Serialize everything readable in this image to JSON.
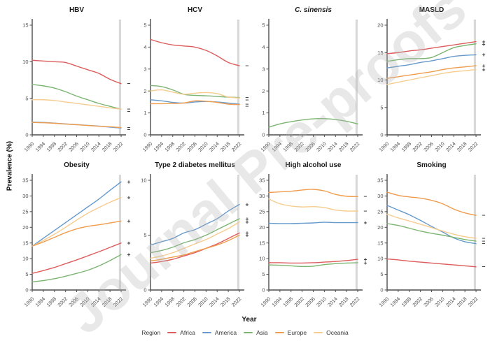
{
  "watermark": "Journal Pre-proofs",
  "ylabel": "Prevalence (%)",
  "xlabel": "Year",
  "legend": {
    "title": "Region",
    "items": [
      {
        "label": "Africa",
        "color": "#DD5C5C"
      },
      {
        "label": "America",
        "color": "#6699CC"
      },
      {
        "label": "Asia",
        "color": "#7CB572"
      },
      {
        "label": "Europe",
        "color": "#F09C4D"
      },
      {
        "label": "Oceania",
        "color": "#F6CC8F"
      }
    ]
  },
  "styles": {
    "axis": "#4d4d4d",
    "tick_text": "#4d4d4d",
    "band": "#d9d9d9",
    "marker": "#333333"
  },
  "highlight_band_year": 2021.6,
  "years": [
    1990,
    1994,
    1998,
    2002,
    2006,
    2010,
    2014,
    2018,
    2022
  ],
  "chart_data": [
    {
      "type": "line",
      "title": "HBV",
      "title_italic": false,
      "ylim": [
        0,
        15
      ],
      "yticks": [
        0,
        5,
        10,
        15
      ],
      "x": [
        1990,
        1994,
        1998,
        2002,
        2006,
        2010,
        2014,
        2018,
        2022
      ],
      "series": [
        {
          "name": "Africa",
          "values": [
            10.2,
            10.1,
            10.0,
            9.9,
            9.4,
            8.9,
            8.4,
            7.6,
            7.0
          ],
          "end_marker": "−"
        },
        {
          "name": "Asia",
          "values": [
            6.9,
            6.7,
            6.4,
            5.9,
            5.3,
            4.8,
            4.3,
            3.9,
            3.5
          ],
          "end_marker": "−"
        },
        {
          "name": "Oceania",
          "values": [
            4.8,
            4.8,
            4.7,
            4.5,
            4.3,
            4.1,
            3.9,
            3.7,
            3.5
          ],
          "end_marker": "−"
        },
        {
          "name": "America",
          "values": [
            1.75,
            1.7,
            1.6,
            1.5,
            1.4,
            1.3,
            1.2,
            1.05,
            0.95
          ],
          "end_marker": "−"
        },
        {
          "name": "Europe",
          "values": [
            1.7,
            1.65,
            1.58,
            1.48,
            1.38,
            1.28,
            1.18,
            1.1,
            1.0
          ],
          "end_marker": "−"
        }
      ]
    },
    {
      "type": "line",
      "title": "HCV",
      "title_italic": false,
      "ylim": [
        0,
        5
      ],
      "yticks": [
        0,
        1,
        2,
        3,
        4,
        5
      ],
      "x": [
        1990,
        1994,
        1998,
        2002,
        2006,
        2010,
        2014,
        2018,
        2022
      ],
      "series": [
        {
          "name": "Africa",
          "values": [
            4.35,
            4.2,
            4.1,
            4.05,
            4.0,
            3.85,
            3.6,
            3.3,
            3.15
          ],
          "end_marker": "−"
        },
        {
          "name": "Asia",
          "values": [
            2.25,
            2.2,
            2.05,
            1.85,
            1.8,
            1.78,
            1.75,
            1.72,
            1.7
          ],
          "end_marker": "−"
        },
        {
          "name": "Oceania",
          "values": [
            2.0,
            2.05,
            1.95,
            1.85,
            1.9,
            1.93,
            1.88,
            1.72,
            1.68
          ],
          "end_marker": "−"
        },
        {
          "name": "America",
          "values": [
            1.6,
            1.55,
            1.48,
            1.45,
            1.5,
            1.52,
            1.5,
            1.45,
            1.4
          ],
          "end_marker": "−"
        },
        {
          "name": "Europe",
          "values": [
            1.42,
            1.42,
            1.43,
            1.45,
            1.55,
            1.53,
            1.48,
            1.4,
            1.38
          ],
          "end_marker": "−"
        }
      ]
    },
    {
      "type": "line",
      "title": "C. sinensis",
      "title_italic": true,
      "ylim": [
        0,
        5
      ],
      "yticks": [
        0,
        1,
        2,
        3,
        4,
        5
      ],
      "x": [
        1990,
        1994,
        1998,
        2002,
        2006,
        2010,
        2014,
        2018,
        2022
      ],
      "series": [
        {
          "name": "Asia",
          "values": [
            0.35,
            0.5,
            0.6,
            0.68,
            0.73,
            0.74,
            0.7,
            0.62,
            0.5
          ],
          "end_marker": ""
        }
      ]
    },
    {
      "type": "line",
      "title": "MASLD",
      "title_italic": false,
      "ylim": [
        0,
        20
      ],
      "yticks": [
        0,
        5,
        10,
        15,
        20
      ],
      "x": [
        1990,
        1994,
        1998,
        2002,
        2006,
        2010,
        2014,
        2018,
        2022
      ],
      "series": [
        {
          "name": "Africa",
          "values": [
            14.8,
            15.0,
            15.3,
            15.5,
            15.8,
            16.1,
            16.4,
            16.7,
            17.0
          ],
          "end_marker": "+"
        },
        {
          "name": "Asia",
          "values": [
            13.4,
            13.7,
            13.9,
            13.9,
            14.1,
            15.0,
            15.9,
            16.3,
            16.6
          ],
          "end_marker": "+"
        },
        {
          "name": "America",
          "values": [
            12.2,
            12.5,
            12.8,
            13.2,
            13.5,
            13.9,
            14.3,
            14.5,
            14.6
          ],
          "end_marker": "+"
        },
        {
          "name": "Europe",
          "values": [
            10.3,
            10.6,
            10.9,
            11.2,
            11.5,
            11.9,
            12.2,
            12.4,
            12.6
          ],
          "end_marker": "+"
        },
        {
          "name": "Oceania",
          "values": [
            9.2,
            9.6,
            10.0,
            10.4,
            10.8,
            11.2,
            11.5,
            11.7,
            11.9
          ],
          "end_marker": "+"
        }
      ]
    },
    {
      "type": "line",
      "title": "Obesity",
      "title_italic": false,
      "ylim": [
        0,
        35
      ],
      "yticks": [
        0,
        5,
        10,
        15,
        20,
        25,
        30,
        35
      ],
      "x": [
        1990,
        1994,
        1998,
        2002,
        2006,
        2010,
        2014,
        2018,
        2022
      ],
      "series": [
        {
          "name": "America",
          "values": [
            14.0,
            16.5,
            19.0,
            21.5,
            24.0,
            26.5,
            29.0,
            31.8,
            34.5
          ],
          "end_marker": "+"
        },
        {
          "name": "Oceania",
          "values": [
            14.0,
            15.8,
            17.8,
            20.0,
            22.3,
            24.5,
            26.3,
            28.0,
            29.5
          ],
          "end_marker": "+"
        },
        {
          "name": "Europe",
          "values": [
            14.0,
            15.3,
            16.8,
            18.3,
            19.5,
            20.3,
            20.8,
            21.4,
            22.0
          ],
          "end_marker": "+"
        },
        {
          "name": "Africa",
          "values": [
            5.3,
            6.2,
            7.2,
            8.4,
            9.6,
            10.9,
            12.2,
            13.6,
            15.0
          ],
          "end_marker": "+"
        },
        {
          "name": "Asia",
          "values": [
            2.6,
            3.0,
            3.6,
            4.4,
            5.3,
            6.3,
            7.7,
            9.4,
            11.3
          ],
          "end_marker": "+"
        }
      ]
    },
    {
      "type": "line",
      "title": "Type 2 diabetes mellitus",
      "title_italic": false,
      "ylim": [
        0,
        10
      ],
      "yticks": [
        0,
        5,
        10
      ],
      "x": [
        1990,
        1994,
        1998,
        2002,
        2006,
        2010,
        2014,
        2018,
        2022
      ],
      "series": [
        {
          "name": "America",
          "values": [
            4.1,
            4.4,
            4.7,
            5.2,
            5.5,
            6.0,
            6.5,
            7.2,
            7.8
          ],
          "end_marker": "+"
        },
        {
          "name": "Asia",
          "values": [
            3.4,
            3.6,
            3.9,
            4.3,
            4.6,
            5.0,
            5.5,
            6.0,
            6.5
          ],
          "end_marker": "+"
        },
        {
          "name": "Oceania",
          "values": [
            2.9,
            3.1,
            3.4,
            3.8,
            4.2,
            4.6,
            5.1,
            5.6,
            6.2
          ],
          "end_marker": "+"
        },
        {
          "name": "Africa",
          "values": [
            2.45,
            2.6,
            2.8,
            3.1,
            3.4,
            3.8,
            4.2,
            4.7,
            5.2
          ],
          "end_marker": "+"
        },
        {
          "name": "Europe",
          "values": [
            2.65,
            2.8,
            3.0,
            3.2,
            3.5,
            3.8,
            4.1,
            4.5,
            5.0
          ],
          "end_marker": "+"
        }
      ]
    },
    {
      "type": "line",
      "title": "High alcohol use",
      "title_italic": false,
      "ylim": [
        0,
        35
      ],
      "yticks": [
        0,
        5,
        10,
        15,
        20,
        25,
        30,
        35
      ],
      "x": [
        1990,
        1994,
        1998,
        2002,
        2006,
        2010,
        2014,
        2018,
        2022
      ],
      "series": [
        {
          "name": "Europe",
          "values": [
            31.1,
            31.3,
            31.5,
            31.9,
            32.1,
            31.6,
            30.5,
            29.9,
            29.8
          ],
          "end_marker": "−"
        },
        {
          "name": "Oceania",
          "values": [
            29.0,
            27.5,
            26.8,
            26.5,
            26.6,
            26.3,
            25.5,
            25.2,
            25.2
          ],
          "end_marker": "−"
        },
        {
          "name": "America",
          "values": [
            21.3,
            21.2,
            21.2,
            21.3,
            21.4,
            21.6,
            21.5,
            21.5,
            21.5
          ],
          "end_marker": "+"
        },
        {
          "name": "Africa",
          "values": [
            8.7,
            8.7,
            8.6,
            8.6,
            8.7,
            8.9,
            9.1,
            9.4,
            9.8
          ],
          "end_marker": "+"
        },
        {
          "name": "Asia",
          "values": [
            8.0,
            7.9,
            7.7,
            7.5,
            7.6,
            8.1,
            8.4,
            8.6,
            8.7
          ],
          "end_marker": "+"
        }
      ]
    },
    {
      "type": "line",
      "title": "Smoking",
      "title_italic": false,
      "ylim": [
        0,
        35
      ],
      "yticks": [
        0,
        5,
        10,
        15,
        20,
        25,
        30,
        35
      ],
      "x": [
        1990,
        1994,
        1998,
        2002,
        2006,
        2010,
        2014,
        2018,
        2022
      ],
      "series": [
        {
          "name": "Europe",
          "values": [
            31.2,
            30.2,
            29.7,
            29.3,
            28.6,
            27.5,
            25.8,
            24.6,
            23.8
          ],
          "end_marker": "−"
        },
        {
          "name": "America",
          "values": [
            27.0,
            25.5,
            24.0,
            22.2,
            20.3,
            18.5,
            16.6,
            15.4,
            14.8
          ],
          "end_marker": "−"
        },
        {
          "name": "Oceania",
          "values": [
            24.2,
            23.0,
            22.0,
            21.0,
            19.9,
            18.8,
            17.8,
            17.0,
            16.5
          ],
          "end_marker": "−"
        },
        {
          "name": "Asia",
          "values": [
            21.2,
            20.6,
            19.7,
            18.8,
            18.1,
            17.5,
            16.8,
            16.1,
            15.6
          ],
          "end_marker": "−"
        },
        {
          "name": "Africa",
          "values": [
            9.9,
            9.6,
            9.2,
            8.9,
            8.6,
            8.3,
            8.0,
            7.7,
            7.4
          ],
          "end_marker": "−"
        }
      ]
    }
  ]
}
